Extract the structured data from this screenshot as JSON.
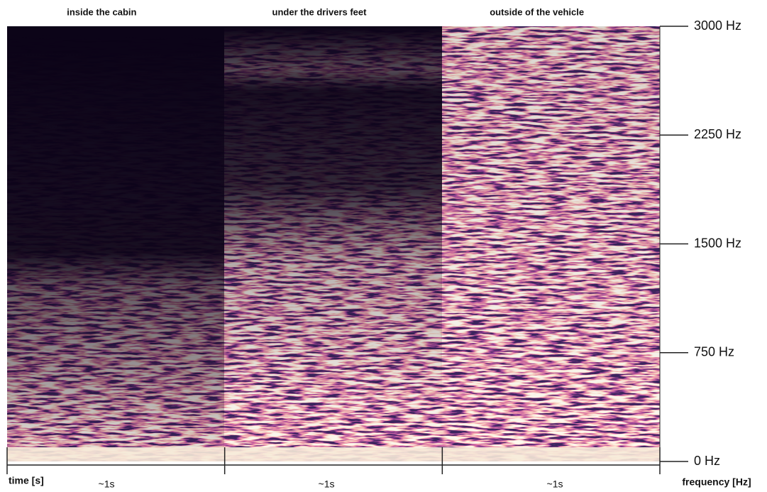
{
  "chart_data": {
    "type": "spectrogram",
    "panels": [
      {
        "title": "inside the cabin",
        "duration_label": "~1s"
      },
      {
        "title": "under the drivers feet",
        "duration_label": "~1s"
      },
      {
        "title": "outside of the vehicle",
        "duration_label": "~1s"
      }
    ],
    "xlabel": "time [s]",
    "ylabel": "frequency [Hz]",
    "ylim": [
      0,
      3000
    ],
    "yticks": [
      {
        "value": 0,
        "label": "0 Hz"
      },
      {
        "value": 750,
        "label": "750 Hz"
      },
      {
        "value": 1500,
        "label": "1500 Hz"
      },
      {
        "value": 2250,
        "label": "2250 Hz"
      },
      {
        "value": 3000,
        "label": "3000 Hz"
      }
    ]
  }
}
